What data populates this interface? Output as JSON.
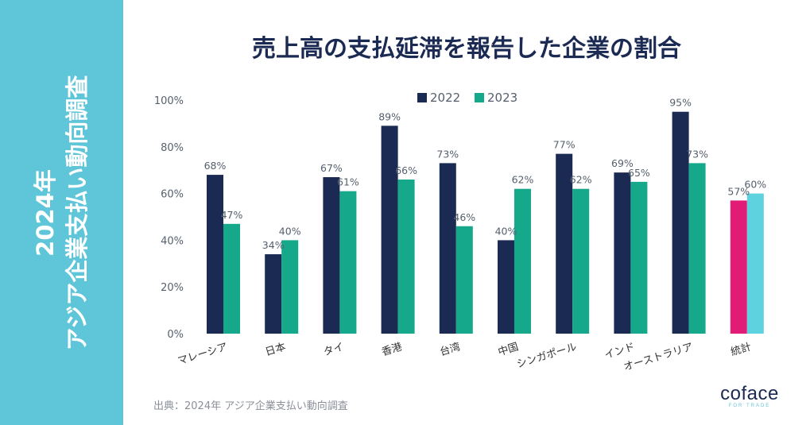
{
  "side_title": {
    "line1": "2024年",
    "line2": "アジア企業支払い動向調査"
  },
  "title": "売上高の支払延滞を報告した企業の割合",
  "source": "出典：2024年 アジア企業支払い動向調査",
  "logo": {
    "main": "coface",
    "sub": "FOR TRADE"
  },
  "colors": {
    "band": "#5fc6d9",
    "series_2022": "#1b2a52",
    "series_2023": "#15a88a",
    "total_2022": "#e21b76",
    "total_2023": "#5fd2df",
    "title": "#1b2a52",
    "axis_text": "#555f6d"
  },
  "chart_data": {
    "type": "bar",
    "title": "売上高の支払延滞を報告した企業の割合",
    "categories": [
      "マレーシア",
      "日本",
      "タイ",
      "香港",
      "台湾",
      "中国",
      "シンガポール",
      "インド",
      "オーストラリア",
      "統計"
    ],
    "series": [
      {
        "name": "2022",
        "values": [
          68,
          34,
          67,
          89,
          73,
          40,
          77,
          69,
          95,
          57
        ]
      },
      {
        "name": "2023",
        "values": [
          47,
          40,
          61,
          66,
          46,
          62,
          62,
          65,
          73,
          60
        ]
      }
    ],
    "value_labels": {
      "2022": [
        "68%",
        "34%",
        "67%",
        "89%",
        "73%",
        "40%",
        "77%",
        "69%",
        "95%",
        "57%"
      ],
      "2023": [
        "47%",
        "40%",
        "61%",
        "66%",
        "46%",
        "62%",
        "62%",
        "65%",
        "73%",
        "60%"
      ]
    },
    "yticks": [
      "0%",
      "20%",
      "40%",
      "60%",
      "80%",
      "100%"
    ],
    "ylim": [
      0,
      100
    ],
    "grid": false,
    "legend_position": "top-center",
    "highlight_category": "統計"
  }
}
